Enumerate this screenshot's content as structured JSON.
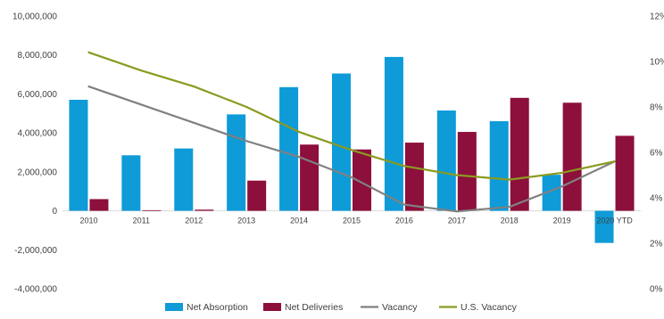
{
  "chart_data": {
    "type": "bar",
    "categories": [
      "2010",
      "2011",
      "2012",
      "2013",
      "2014",
      "2015",
      "2016",
      "2017",
      "2018",
      "2019",
      "2020 YTD"
    ],
    "y_left": {
      "range": [
        -4000000,
        10000000
      ],
      "ticks": [
        "-4,000,000",
        "-2,000,000",
        "0",
        "2,000,000",
        "4,000,000",
        "6,000,000",
        "8,000,000",
        "10,000,000"
      ]
    },
    "y_right": {
      "range": [
        0,
        12
      ],
      "ticks": [
        "0%",
        "2%",
        "4%",
        "6%",
        "8%",
        "10%",
        "12%"
      ]
    },
    "series": [
      {
        "name": "Net Absorption",
        "kind": "bar",
        "axis": "left",
        "color": "#0E9BD8",
        "values": [
          5700000,
          2850000,
          3200000,
          4950000,
          6350000,
          7050000,
          7900000,
          5150000,
          4600000,
          1850000,
          -1650000
        ]
      },
      {
        "name": "Net Deliveries",
        "kind": "bar",
        "axis": "left",
        "color": "#8C0F3C",
        "values": [
          600000,
          30000,
          60000,
          1550000,
          3400000,
          3150000,
          3500000,
          4050000,
          5800000,
          5550000,
          3850000
        ]
      },
      {
        "name": "Vacancy",
        "kind": "line",
        "axis": "right",
        "color": "#808080",
        "values": [
          8.9,
          8.1,
          7.3,
          6.5,
          5.8,
          4.9,
          3.7,
          3.4,
          3.6,
          4.5,
          5.6
        ]
      },
      {
        "name": "U.S. Vacancy",
        "kind": "line",
        "axis": "right",
        "color": "#8B9A1F",
        "values": [
          10.4,
          9.6,
          8.9,
          8.0,
          6.9,
          6.1,
          5.4,
          5.0,
          4.8,
          5.1,
          5.6
        ]
      }
    ],
    "grid": false,
    "legend_position": "bottom"
  }
}
